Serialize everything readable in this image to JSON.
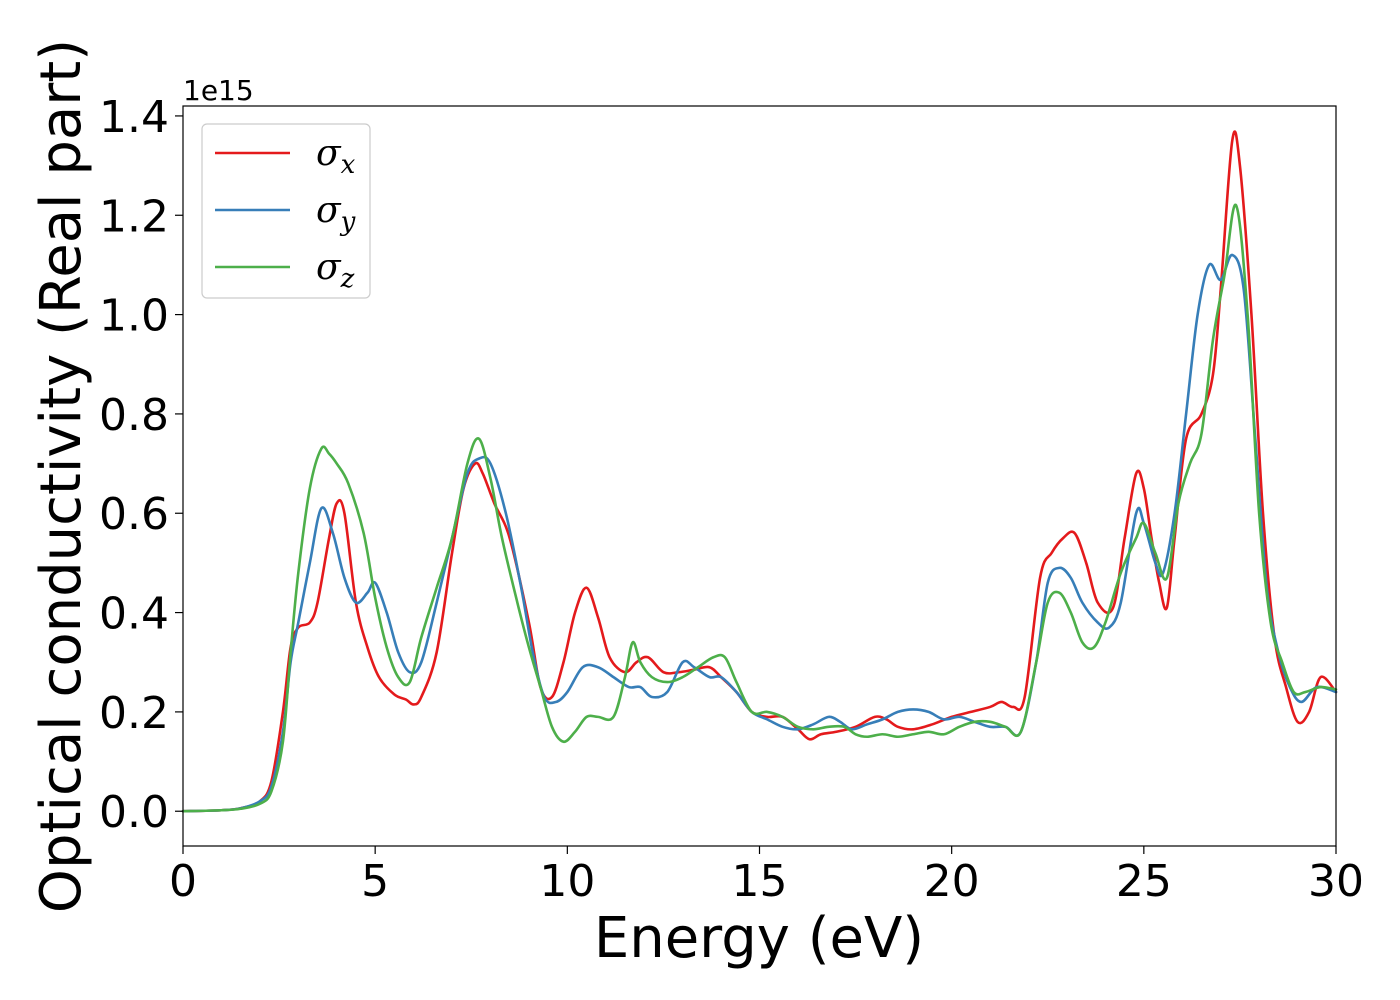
{
  "chart_data": {
    "type": "line",
    "xlabel": "Energy (eV)",
    "ylabel": "Optical conductivity (Real part)",
    "y_offset_label": "1e15",
    "xlim": [
      0,
      30
    ],
    "ylim": [
      -0.07,
      1.42
    ],
    "x_ticks": [
      0,
      5,
      10,
      15,
      20,
      25,
      30
    ],
    "y_ticks": [
      0.0,
      0.2,
      0.4,
      0.6,
      0.8,
      1.0,
      1.2,
      1.4
    ],
    "x_tick_labels": [
      "0",
      "5",
      "10",
      "15",
      "20",
      "25",
      "30"
    ],
    "y_tick_labels": [
      "0.0",
      "0.2",
      "0.4",
      "0.6",
      "0.8",
      "1.0",
      "1.2",
      "1.4"
    ],
    "grid": false,
    "legend_position": "top-left",
    "series": [
      {
        "name": "σx",
        "symbol": "σ",
        "subscript": "x",
        "color": "#e41a1c",
        "x": [
          0,
          1,
          1.5,
          2,
          2.3,
          2.6,
          2.8,
          3.0,
          3.3,
          3.5,
          3.8,
          4.0,
          4.2,
          4.5,
          4.8,
          5.1,
          5.5,
          5.8,
          6.0,
          6.2,
          6.6,
          7.0,
          7.3,
          7.6,
          7.8,
          8.1,
          8.5,
          9.0,
          9.3,
          9.6,
          9.9,
          10.2,
          10.5,
          10.8,
          11.1,
          11.5,
          11.8,
          12.1,
          12.5,
          12.9,
          13.3,
          13.7,
          14.0,
          14.4,
          14.8,
          15.2,
          15.6,
          16.0,
          16.3,
          16.6,
          17.0,
          17.5,
          18.0,
          18.3,
          18.6,
          19.0,
          19.5,
          20.0,
          20.5,
          21.0,
          21.3,
          21.6,
          21.9,
          22.3,
          22.6,
          22.9,
          23.2,
          23.5,
          23.8,
          24.2,
          24.5,
          24.8,
          25.0,
          25.2,
          25.4,
          25.6,
          25.8,
          26.1,
          26.5,
          26.8,
          27.0,
          27.3,
          27.5,
          27.8,
          28.1,
          28.4,
          28.7,
          29.0,
          29.3,
          29.6,
          30.0
        ],
        "y": [
          0.0,
          0.002,
          0.006,
          0.02,
          0.06,
          0.2,
          0.33,
          0.37,
          0.38,
          0.42,
          0.55,
          0.62,
          0.6,
          0.42,
          0.33,
          0.27,
          0.235,
          0.225,
          0.215,
          0.23,
          0.32,
          0.52,
          0.65,
          0.7,
          0.68,
          0.62,
          0.55,
          0.38,
          0.25,
          0.23,
          0.3,
          0.4,
          0.45,
          0.39,
          0.31,
          0.28,
          0.3,
          0.31,
          0.28,
          0.28,
          0.285,
          0.29,
          0.27,
          0.24,
          0.2,
          0.19,
          0.19,
          0.165,
          0.145,
          0.155,
          0.16,
          0.17,
          0.19,
          0.185,
          0.17,
          0.165,
          0.175,
          0.19,
          0.2,
          0.21,
          0.22,
          0.21,
          0.23,
          0.47,
          0.52,
          0.55,
          0.56,
          0.5,
          0.42,
          0.41,
          0.55,
          0.68,
          0.65,
          0.55,
          0.46,
          0.41,
          0.55,
          0.75,
          0.8,
          0.88,
          1.05,
          1.35,
          1.3,
          1.0,
          0.6,
          0.35,
          0.25,
          0.18,
          0.2,
          0.27,
          0.24
        ]
      },
      {
        "name": "σy",
        "symbol": "σ",
        "subscript": "y",
        "color": "#377eb8",
        "x": [
          0,
          1,
          1.5,
          2,
          2.3,
          2.6,
          2.8,
          3.0,
          3.3,
          3.6,
          3.9,
          4.2,
          4.5,
          4.8,
          5.0,
          5.3,
          5.6,
          5.9,
          6.2,
          6.6,
          7.0,
          7.4,
          7.7,
          8.0,
          8.4,
          8.8,
          9.1,
          9.4,
          9.7,
          10.0,
          10.4,
          10.8,
          11.2,
          11.6,
          11.9,
          12.2,
          12.6,
          13.0,
          13.3,
          13.7,
          14.0,
          14.4,
          14.8,
          15.2,
          15.6,
          16.0,
          16.4,
          16.8,
          17.1,
          17.4,
          17.8,
          18.2,
          18.6,
          19.0,
          19.4,
          19.8,
          20.2,
          20.6,
          21.0,
          21.4,
          21.8,
          22.2,
          22.5,
          22.8,
          23.1,
          23.4,
          23.8,
          24.1,
          24.4,
          24.8,
          25.0,
          25.3,
          25.5,
          25.8,
          26.1,
          26.4,
          26.7,
          27.0,
          27.3,
          27.6,
          27.9,
          28.2,
          28.5,
          28.8,
          29.1,
          29.5,
          30.0
        ],
        "y": [
          0.0,
          0.002,
          0.006,
          0.02,
          0.05,
          0.16,
          0.3,
          0.38,
          0.5,
          0.61,
          0.56,
          0.47,
          0.42,
          0.44,
          0.46,
          0.4,
          0.32,
          0.28,
          0.3,
          0.42,
          0.55,
          0.68,
          0.71,
          0.7,
          0.6,
          0.45,
          0.32,
          0.23,
          0.22,
          0.24,
          0.29,
          0.29,
          0.27,
          0.25,
          0.25,
          0.23,
          0.24,
          0.3,
          0.29,
          0.27,
          0.27,
          0.24,
          0.2,
          0.185,
          0.17,
          0.165,
          0.175,
          0.19,
          0.18,
          0.165,
          0.175,
          0.185,
          0.2,
          0.205,
          0.2,
          0.185,
          0.19,
          0.18,
          0.17,
          0.17,
          0.16,
          0.3,
          0.46,
          0.49,
          0.47,
          0.42,
          0.38,
          0.37,
          0.42,
          0.6,
          0.58,
          0.5,
          0.48,
          0.6,
          0.8,
          1.0,
          1.1,
          1.07,
          1.12,
          1.05,
          0.75,
          0.45,
          0.32,
          0.25,
          0.22,
          0.25,
          0.24
        ]
      },
      {
        "name": "σz",
        "symbol": "σ",
        "subscript": "z",
        "color": "#4daf4a",
        "x": [
          0,
          1,
          1.5,
          2,
          2.3,
          2.6,
          2.8,
          3.0,
          3.3,
          3.6,
          3.8,
          4.0,
          4.3,
          4.7,
          5.0,
          5.3,
          5.6,
          5.9,
          6.2,
          6.6,
          7.0,
          7.4,
          7.7,
          8.0,
          8.3,
          8.7,
          9.0,
          9.3,
          9.6,
          9.9,
          10.2,
          10.5,
          10.8,
          11.2,
          11.5,
          11.7,
          11.9,
          12.2,
          12.6,
          13.0,
          13.4,
          13.8,
          14.1,
          14.4,
          14.8,
          15.2,
          15.6,
          16.0,
          16.4,
          16.8,
          17.2,
          17.5,
          17.8,
          18.2,
          18.6,
          19.0,
          19.4,
          19.8,
          20.2,
          20.6,
          21.0,
          21.4,
          21.8,
          22.2,
          22.5,
          22.8,
          23.1,
          23.4,
          23.7,
          24.0,
          24.4,
          24.8,
          25.0,
          25.3,
          25.6,
          25.9,
          26.2,
          26.5,
          26.8,
          27.1,
          27.4,
          27.7,
          28.0,
          28.3,
          28.6,
          28.9,
          29.2,
          29.6,
          30.0
        ],
        "y": [
          0.0,
          0.002,
          0.005,
          0.015,
          0.04,
          0.14,
          0.32,
          0.48,
          0.65,
          0.73,
          0.72,
          0.7,
          0.66,
          0.56,
          0.43,
          0.33,
          0.27,
          0.26,
          0.35,
          0.45,
          0.55,
          0.7,
          0.75,
          0.67,
          0.55,
          0.42,
          0.33,
          0.25,
          0.17,
          0.14,
          0.16,
          0.19,
          0.19,
          0.19,
          0.27,
          0.34,
          0.3,
          0.27,
          0.26,
          0.27,
          0.29,
          0.31,
          0.31,
          0.26,
          0.2,
          0.2,
          0.19,
          0.17,
          0.165,
          0.17,
          0.17,
          0.155,
          0.15,
          0.155,
          0.15,
          0.155,
          0.16,
          0.155,
          0.17,
          0.18,
          0.18,
          0.17,
          0.16,
          0.3,
          0.42,
          0.44,
          0.4,
          0.34,
          0.33,
          0.38,
          0.48,
          0.55,
          0.58,
          0.52,
          0.47,
          0.62,
          0.7,
          0.76,
          0.95,
          1.08,
          1.22,
          1.0,
          0.6,
          0.38,
          0.3,
          0.24,
          0.24,
          0.25,
          0.245
        ]
      }
    ]
  }
}
